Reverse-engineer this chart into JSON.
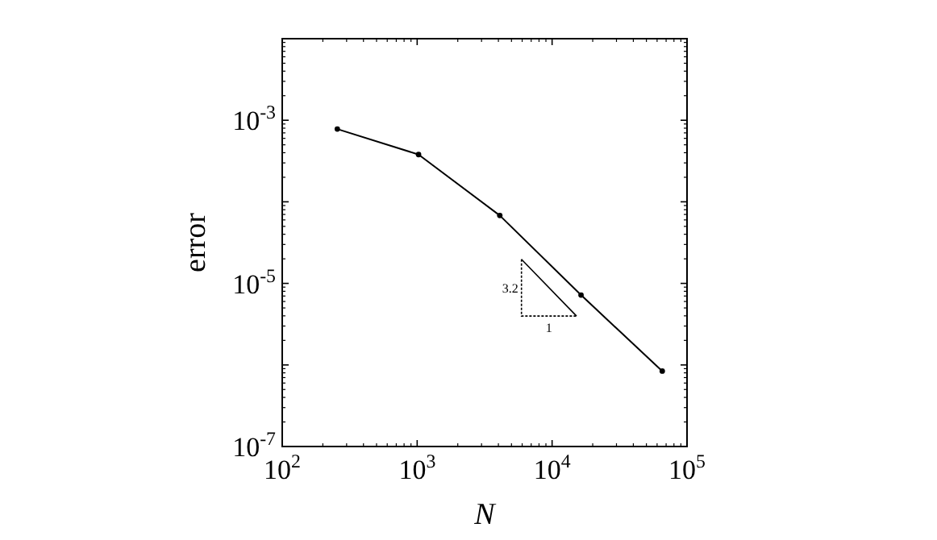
{
  "chart_data": {
    "type": "line",
    "xlabel": "N",
    "ylabel": "error",
    "log": "xy",
    "marker": "circle",
    "line_style": "solid",
    "grid": false,
    "x": [
      256,
      1024,
      4096,
      16384,
      65536
    ],
    "series": [
      {
        "color": "#000000",
        "values": [
          0.00078,
          0.00038,
          6.8e-05,
          7.2e-06,
          8.4e-07
        ]
      }
    ],
    "xlim": [
      100,
      100000
    ],
    "xticks": [
      {
        "value": 100,
        "label": "10$^{2}$"
      },
      {
        "value": 1000,
        "label": "10$^{3}$"
      },
      {
        "value": 10000,
        "label": "10$^{4}$"
      },
      {
        "value": 100000,
        "label": "10$^{5}$"
      }
    ],
    "ylim": [
      1e-07,
      0.01
    ],
    "yticks": [
      {
        "value": 1e-07,
        "label": "10$^{-7}$"
      },
      {
        "value": 1e-06,
        "label": null
      },
      {
        "value": 1e-05,
        "label": "10$^{-5}$"
      },
      {
        "value": 0.0001,
        "label": null
      },
      {
        "value": 0.001,
        "label": "10$^{-3}$"
      },
      {
        "value": 0.01,
        "label": null
      }
    ],
    "annotations": [
      "3.2",
      "1"
    ]
  }
}
